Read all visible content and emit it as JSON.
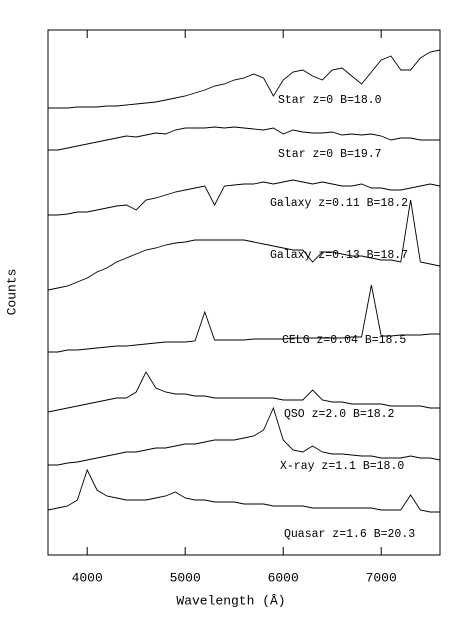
{
  "chart_data": {
    "type": "line",
    "ylabel": "Counts",
    "xlabel": "Wavelength (Å)",
    "xlim": [
      3600,
      7600
    ],
    "xticks": [
      4000,
      5000,
      6000,
      7000
    ],
    "ylim": [
      0,
      525
    ],
    "x": [
      3600,
      3700,
      3800,
      3900,
      4000,
      4100,
      4200,
      4300,
      4400,
      4500,
      4600,
      4700,
      4800,
      4900,
      5000,
      5100,
      5200,
      5300,
      5400,
      5500,
      5600,
      5700,
      5800,
      5900,
      6000,
      6100,
      6200,
      6300,
      6400,
      6500,
      6600,
      6700,
      6800,
      6900,
      7000,
      7100,
      7200,
      7300,
      7400,
      7500,
      7600
    ],
    "series": [
      {
        "name": "Star z=0 B=18.0",
        "color": "#000000",
        "values": [
          447,
          447,
          447,
          448,
          448,
          448,
          449,
          449,
          450,
          451,
          452,
          453,
          455,
          457,
          459,
          462,
          465,
          469,
          471,
          475,
          477,
          481,
          477,
          459,
          475,
          483,
          485,
          479,
          475,
          485,
          487,
          479,
          471,
          483,
          495,
          499,
          485,
          485,
          497,
          503,
          505
        ]
      },
      {
        "name": "Star z=0 B=19.7",
        "color": "#000000",
        "values": [
          405,
          405,
          407,
          409,
          411,
          413,
          415,
          417,
          419,
          418,
          420,
          422,
          421,
          425,
          427,
          427,
          427,
          428,
          427,
          428,
          427,
          426,
          425,
          427,
          421,
          425,
          423,
          422,
          422,
          423,
          420,
          421,
          420,
          421,
          419,
          415,
          417,
          417,
          415,
          415,
          415
        ]
      },
      {
        "name": "Galaxy z=0.11 B=18.2",
        "color": "#000000",
        "values": [
          340,
          340,
          341,
          343,
          343,
          345,
          347,
          349,
          350,
          345,
          355,
          357,
          360,
          363,
          365,
          367,
          369,
          350,
          369,
          370,
          371,
          371,
          373,
          371,
          373,
          375,
          373,
          371,
          373,
          371,
          369,
          369,
          371,
          367,
          367,
          365,
          365,
          367,
          369,
          371,
          369
        ]
      },
      {
        "name": "Galaxy z=0.13 B=18.7",
        "color": "#000000",
        "values": [
          265,
          267,
          269,
          273,
          277,
          283,
          287,
          293,
          297,
          301,
          305,
          307,
          310,
          312,
          313,
          315,
          315,
          315,
          315,
          315,
          315,
          313,
          311,
          309,
          307,
          305,
          305,
          293,
          303,
          303,
          301,
          299,
          299,
          297,
          295,
          295,
          293,
          355,
          293,
          291,
          289
        ]
      },
      {
        "name": "CELG z=0.04 B=18.5",
        "color": "#000000",
        "values": [
          203,
          203,
          205,
          205,
          206,
          207,
          208,
          209,
          209,
          210,
          211,
          212,
          213,
          213,
          213,
          214,
          243,
          215,
          215,
          215,
          215,
          216,
          216,
          216,
          216,
          217,
          217,
          217,
          217,
          217,
          217,
          218,
          218,
          270,
          219,
          219,
          220,
          220,
          220,
          221,
          221
        ]
      },
      {
        "name": "QSO z=2.0 B=18.2",
        "color": "#000000",
        "values": [
          143,
          145,
          147,
          149,
          151,
          153,
          155,
          157,
          157,
          163,
          183,
          167,
          163,
          161,
          161,
          159,
          159,
          157,
          157,
          157,
          157,
          157,
          157,
          157,
          155,
          155,
          155,
          165,
          155,
          153,
          153,
          151,
          151,
          151,
          151,
          149,
          149,
          149,
          149,
          147,
          147
        ]
      },
      {
        "name": "X-ray z=1.1 B=18.0",
        "color": "#000000",
        "values": [
          90,
          90,
          92,
          93,
          95,
          97,
          99,
          101,
          103,
          103,
          105,
          107,
          107,
          109,
          111,
          111,
          113,
          115,
          115,
          115,
          117,
          119,
          125,
          147,
          115,
          105,
          103,
          109,
          103,
          101,
          101,
          100,
          99,
          99,
          97,
          97,
          97,
          99,
          97,
          97,
          95
        ]
      },
      {
        "name": "Quasar z=1.6 B=20.3",
        "color": "#000000",
        "values": [
          45,
          47,
          49,
          55,
          85,
          65,
          59,
          57,
          55,
          55,
          55,
          57,
          59,
          63,
          57,
          55,
          55,
          53,
          53,
          53,
          51,
          51,
          51,
          49,
          49,
          49,
          49,
          47,
          47,
          47,
          47,
          47,
          47,
          47,
          45,
          45,
          45,
          60,
          45,
          43,
          43
        ]
      }
    ]
  }
}
